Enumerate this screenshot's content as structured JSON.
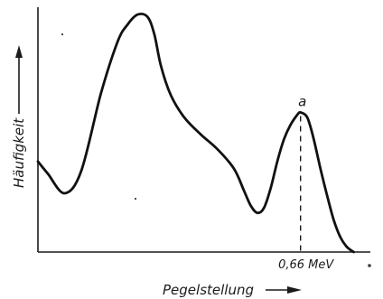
{
  "chart_data": {
    "type": "line",
    "ylabel": "Häufigkeit",
    "xlabel": "Pegelstellung",
    "grid": false,
    "xlim": [
      0,
      100
    ],
    "ylim": [
      0,
      100
    ],
    "series": [
      {
        "x": [
          0,
          3,
          8,
          13,
          19,
          24,
          27,
          30,
          33,
          35,
          37,
          40,
          44,
          49,
          54,
          59,
          62,
          64,
          66,
          68,
          70,
          72,
          74,
          76,
          78,
          79,
          81,
          82.8,
          85,
          87,
          89,
          91,
          93,
          95
        ],
        "y": [
          37,
          32,
          24,
          33,
          65,
          86,
          93,
          97,
          96,
          89,
          76,
          64,
          55,
          48,
          42,
          34,
          25,
          19,
          16,
          18,
          26,
          37,
          46,
          52,
          56,
          57,
          55,
          47,
          34,
          23,
          13,
          6,
          2,
          0
        ],
        "color": "#111111"
      }
    ],
    "annotations": [
      {
        "text": "a",
        "x": 79,
        "y": 57,
        "color": "#111111"
      },
      {
        "text": "0,66 MeV",
        "x": 79,
        "y": 0,
        "color": "#111111"
      }
    ]
  }
}
